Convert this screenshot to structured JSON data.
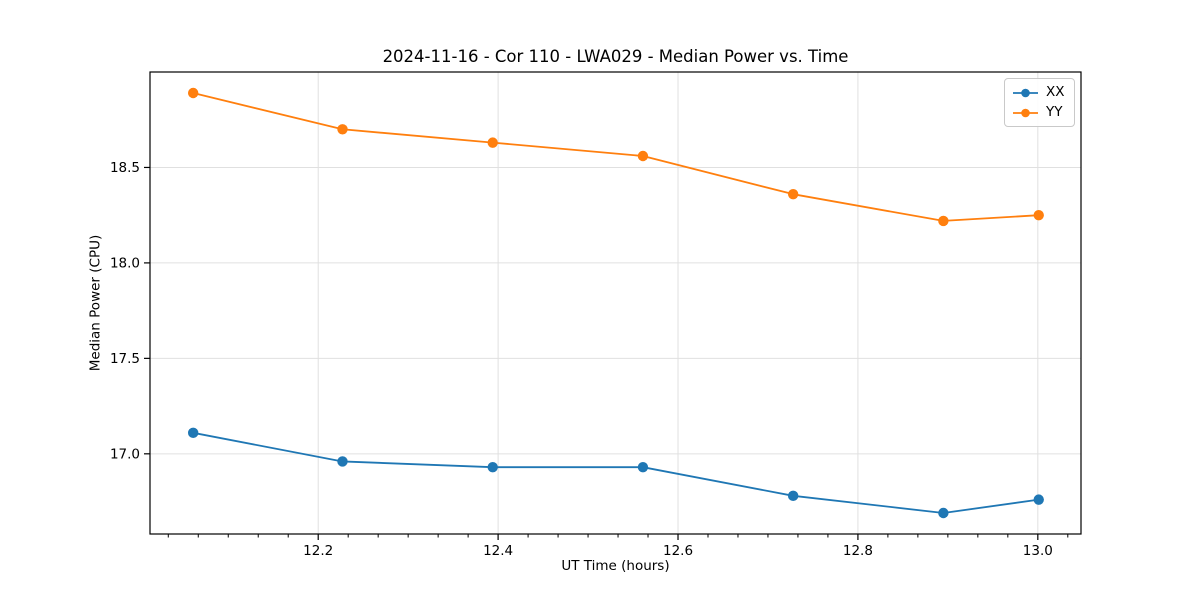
{
  "chart_data": {
    "type": "line",
    "title": "2024-11-16 - Cor 110 - LWA029 - Median Power vs. Time",
    "xlabel": "UT Time (hours)",
    "ylabel": "Median Power (CPU)",
    "x": [
      12.061,
      12.227,
      12.394,
      12.561,
      12.728,
      12.895,
      13.001
    ],
    "series": [
      {
        "name": "XX",
        "color": "#1f77b4",
        "values": [
          17.11,
          16.96,
          16.93,
          16.93,
          16.78,
          16.69,
          16.76
        ]
      },
      {
        "name": "YY",
        "color": "#ff7f0e",
        "values": [
          18.89,
          18.7,
          18.63,
          18.56,
          18.36,
          18.22,
          18.25
        ]
      }
    ],
    "xlim": [
      12.013,
      13.048
    ],
    "ylim": [
      16.58,
      19.0
    ],
    "xticks": [
      {
        "value": 12.2,
        "label": "12.2"
      },
      {
        "value": 12.4,
        "label": "12.4"
      },
      {
        "value": 12.6,
        "label": "12.6"
      },
      {
        "value": 12.8,
        "label": "12.8"
      },
      {
        "value": 13.0,
        "label": "13.0"
      }
    ],
    "yticks": [
      {
        "value": 17.0,
        "label": "17.0"
      },
      {
        "value": 17.5,
        "label": "17.5"
      },
      {
        "value": 18.0,
        "label": "18.0"
      },
      {
        "value": 18.5,
        "label": "18.5"
      }
    ],
    "x_minor_step": 0.0333333,
    "grid": true,
    "grid_on": "both",
    "grid_color": "#e0e0e0",
    "axis_color": "#000000",
    "text_color": "#000000",
    "marker": "o",
    "legend": {
      "position": "upper right",
      "items": [
        "XX",
        "YY"
      ]
    }
  }
}
